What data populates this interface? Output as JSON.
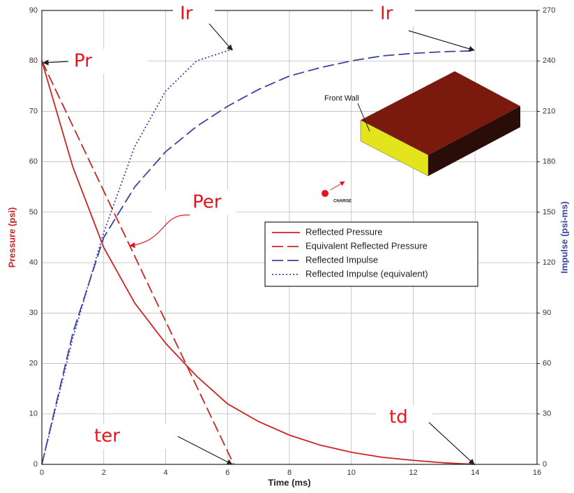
{
  "chart_data": {
    "type": "line",
    "x_label": "Time (ms)",
    "y_label": "Pressure (psi)",
    "y2_label": "Impulse (psi-ms)",
    "xlim": [
      0,
      16
    ],
    "xticks": [
      0,
      2,
      4,
      6,
      8,
      10,
      12,
      14,
      16
    ],
    "ylim": [
      0,
      90
    ],
    "yticks": [
      0,
      10,
      20,
      30,
      40,
      50,
      60,
      70,
      80,
      90
    ],
    "y2lim": [
      0,
      270
    ],
    "y2ticks": [
      0,
      30,
      60,
      90,
      120,
      150,
      180,
      210,
      240,
      270
    ],
    "grid": true,
    "series": [
      {
        "name": "Reflected Pressure",
        "color": "#cc2222",
        "style": "solid",
        "x": [
          0,
          1,
          2,
          3,
          4,
          5,
          6,
          7,
          8,
          9,
          10,
          11,
          12,
          13,
          14
        ],
        "values": [
          80,
          59,
          43,
          32,
          24,
          17.5,
          12,
          8.5,
          5.8,
          3.8,
          2.4,
          1.4,
          0.8,
          0.3,
          0
        ]
      },
      {
        "name": "Equivalent Reflected Pressure",
        "color": "#cc2222",
        "style": "dashed",
        "x": [
          0,
          6.2
        ],
        "values": [
          80,
          0
        ]
      },
      {
        "name": "Reflected Impulse",
        "color": "#3a44a0",
        "style": "dashed",
        "axis": "y2",
        "x": [
          0,
          1,
          2,
          3,
          4,
          5,
          6,
          7,
          8,
          9,
          10,
          11,
          12,
          13,
          14
        ],
        "values": [
          0,
          78,
          135,
          165,
          186,
          201,
          213,
          223,
          231,
          236,
          240,
          243,
          244.5,
          245.5,
          246
        ]
      },
      {
        "name": "Reflected Impulse (equivalent)",
        "color": "#3a44a0",
        "style": "dotted",
        "axis": "y2",
        "x": [
          0,
          1,
          2,
          3,
          4,
          5,
          6,
          6.2
        ],
        "values": [
          0,
          75,
          138,
          189,
          222,
          240,
          246,
          247.5
        ]
      }
    ],
    "annotations": [
      "Pr",
      "Ir",
      "Ir",
      "Per",
      "ter",
      "td"
    ],
    "inset": {
      "wall_label": "Front Wall",
      "charge_label": "CHARGE"
    }
  }
}
